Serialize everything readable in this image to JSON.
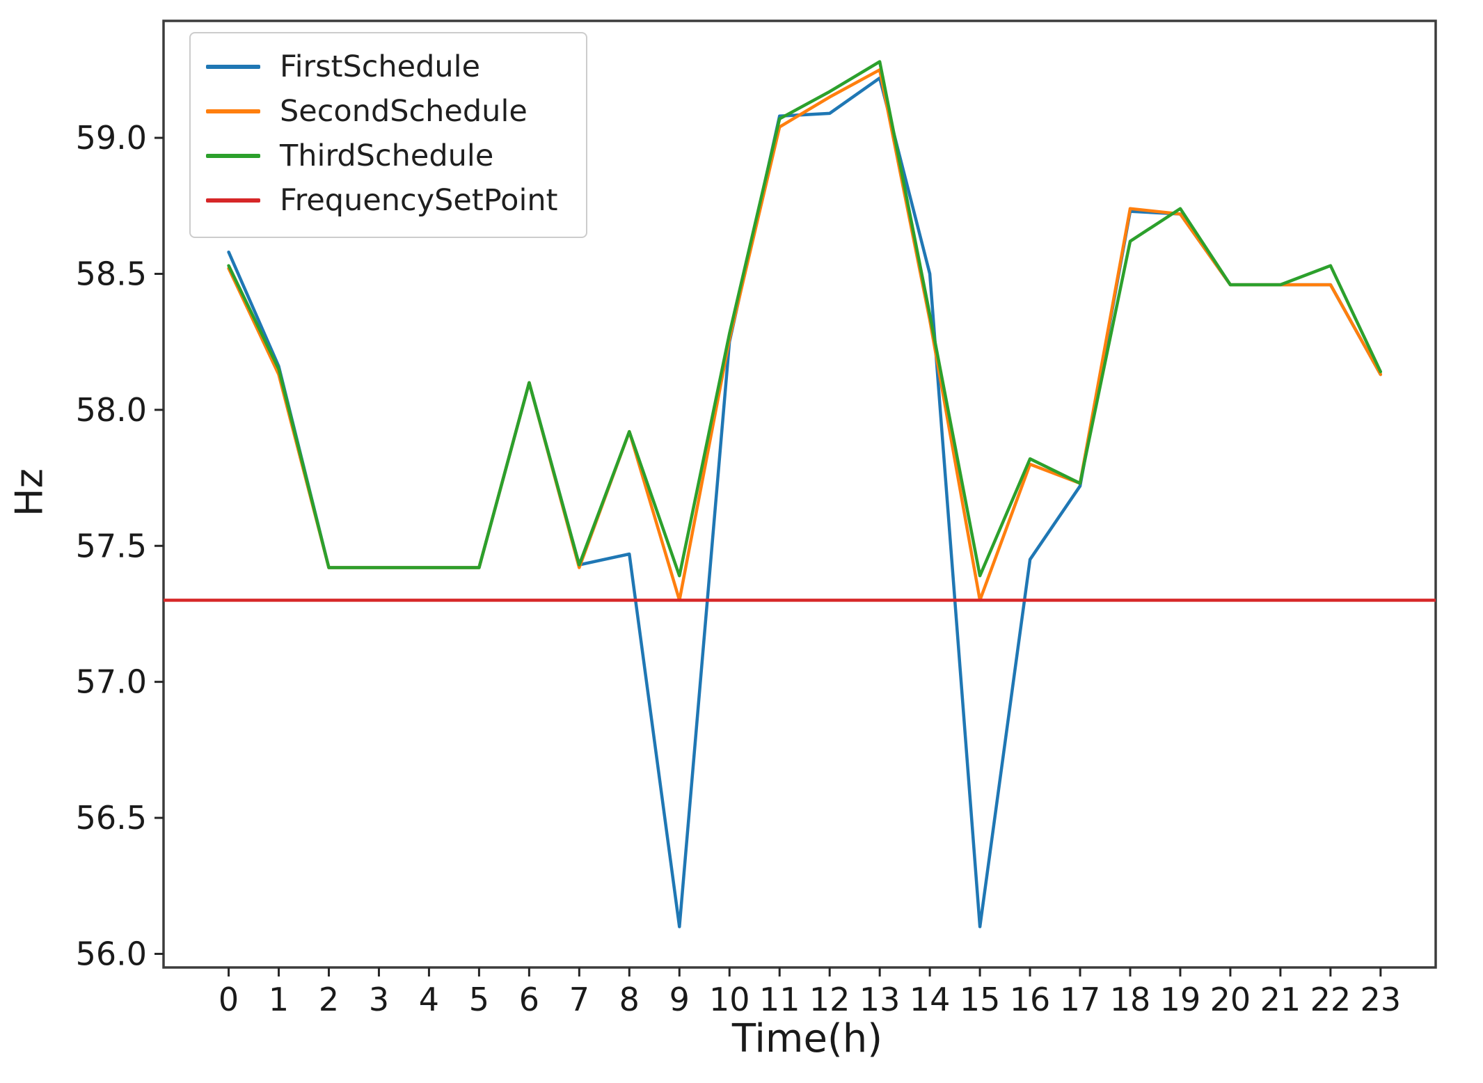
{
  "figure": {
    "xlabel": "Time(h)",
    "ylabel": "Hz"
  },
  "colors": {
    "first_schedule": "#1f77b4",
    "second_schedule": "#ff7f0e",
    "third_schedule": "#2ca02c",
    "frequency_set_point": "#d62728",
    "spine": "#3c3c3c",
    "tick": "#262626"
  },
  "chart_data": {
    "type": "line",
    "title": "",
    "xlabel": "Time(h)",
    "ylabel": "Hz",
    "grid": false,
    "legend_position": "upper left",
    "xlim": [
      -1.3,
      24.1
    ],
    "ylim": [
      55.95,
      59.43
    ],
    "xticks": [
      "0",
      "1",
      "2",
      "3",
      "4",
      "5",
      "6",
      "7",
      "8",
      "9",
      "10",
      "11",
      "12",
      "13",
      "14",
      "15",
      "16",
      "17",
      "18",
      "19",
      "20",
      "21",
      "22",
      "23"
    ],
    "yticks": [
      "56.0",
      "56.5",
      "57.0",
      "57.5",
      "58.0",
      "58.5",
      "59.0"
    ],
    "x": [
      0,
      1,
      2,
      3,
      4,
      5,
      6,
      7,
      8,
      9,
      10,
      11,
      12,
      13,
      14,
      15,
      16,
      17,
      18,
      19,
      20,
      21,
      22,
      23
    ],
    "series": [
      {
        "name": "FirstSchedule",
        "color": "#1f77b4",
        "style": "line",
        "values": [
          58.58,
          58.16,
          57.42,
          57.42,
          57.42,
          57.42,
          58.1,
          57.43,
          57.47,
          56.1,
          58.25,
          59.08,
          59.09,
          59.22,
          58.5,
          56.1,
          57.45,
          57.72,
          58.73,
          58.72,
          58.46,
          58.46,
          58.46,
          58.13
        ]
      },
      {
        "name": "SecondSchedule",
        "color": "#ff7f0e",
        "style": "line",
        "values": [
          58.52,
          58.13,
          57.42,
          57.42,
          57.42,
          57.42,
          58.1,
          57.42,
          57.92,
          57.3,
          58.26,
          59.04,
          59.15,
          59.25,
          58.33,
          57.3,
          57.8,
          57.73,
          58.74,
          58.72,
          58.46,
          58.46,
          58.46,
          58.13
        ]
      },
      {
        "name": "ThirdSchedule",
        "color": "#2ca02c",
        "style": "line",
        "values": [
          58.53,
          58.15,
          57.42,
          57.42,
          57.42,
          57.42,
          58.1,
          57.43,
          57.92,
          57.39,
          58.28,
          59.07,
          59.17,
          59.28,
          58.35,
          57.39,
          57.82,
          57.73,
          58.62,
          58.74,
          58.46,
          58.46,
          58.53,
          58.14
        ]
      },
      {
        "name": "FrequencySetPoint",
        "color": "#d62728",
        "style": "hline",
        "value": 57.3
      }
    ]
  }
}
